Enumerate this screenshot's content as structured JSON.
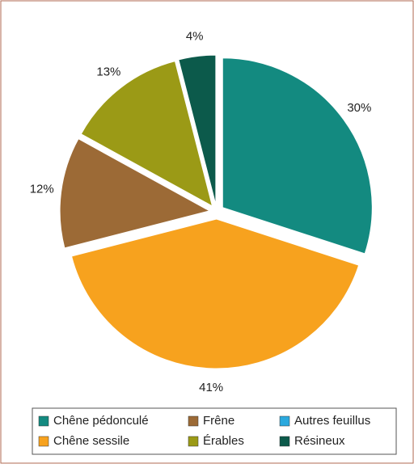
{
  "chart_data": {
    "type": "pie",
    "categories": [
      "Chêne pédonculé",
      "Chêne sessile",
      "Frêne",
      "Érables",
      "Autres feuillus",
      "Résineux"
    ],
    "values": [
      30,
      41,
      12,
      13,
      0,
      4
    ],
    "value_labels": [
      "30%",
      "41%",
      "12%",
      "13%",
      null,
      "4%"
    ],
    "colors": [
      "#138a80",
      "#f7a21e",
      "#9c6a36",
      "#9b9a16",
      "#2aa9de",
      "#0c5a4b"
    ],
    "legend": "bottom"
  }
}
